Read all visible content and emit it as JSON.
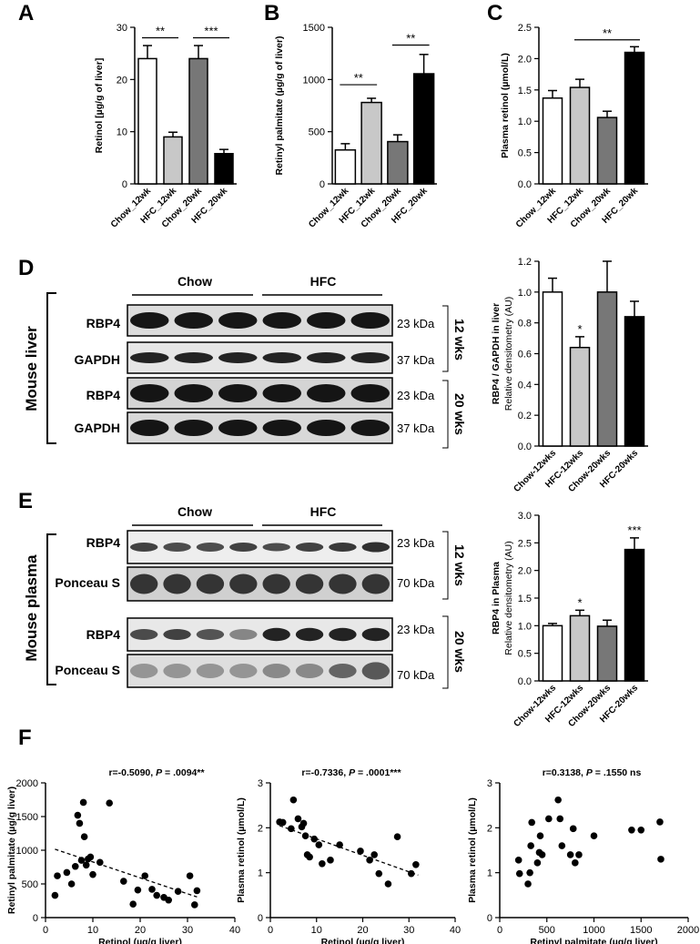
{
  "panel_letters": {
    "a": "A",
    "b": "B",
    "c": "C",
    "d": "D",
    "e": "E",
    "f": "F"
  },
  "chart_data": [
    {
      "id": "A",
      "type": "bar",
      "categories": [
        "Chow_12wk",
        "HFC_12wk",
        "Chow_20wk",
        "HFC_20wk"
      ],
      "values": [
        24,
        9,
        24,
        5.8
      ],
      "errors": [
        2.5,
        0.9,
        2.5,
        0.8
      ],
      "bar_colors": [
        "#ffffff",
        "#c8c8c8",
        "#777777",
        "#000000"
      ],
      "ylabel": "Retinol [µg/g of liver]",
      "ylim": [
        0,
        30
      ],
      "yticks": [
        0,
        10,
        20,
        30
      ],
      "significance": [
        {
          "from": 0,
          "to": 1,
          "label": "**",
          "y": 28
        },
        {
          "from": 2,
          "to": 3,
          "label": "***",
          "y": 28
        }
      ]
    },
    {
      "id": "B",
      "type": "bar",
      "categories": [
        "Chow_12wk",
        "HFC_12wk",
        "Chow_20wk",
        "HFC_20wk"
      ],
      "values": [
        325,
        780,
        405,
        1055
      ],
      "errors": [
        60,
        40,
        65,
        185
      ],
      "bar_colors": [
        "#ffffff",
        "#c8c8c8",
        "#777777",
        "#000000"
      ],
      "ylabel": "Retinyl palmitate (µg/g of liver)",
      "ylim": [
        0,
        1500
      ],
      "yticks": [
        0,
        500,
        1000,
        1500
      ],
      "significance": [
        {
          "from": 0,
          "to": 1,
          "label": "**",
          "y": 950
        },
        {
          "from": 2,
          "to": 3,
          "label": "**",
          "y": 1330
        }
      ]
    },
    {
      "id": "C",
      "type": "bar",
      "categories": [
        "Chow_12wk",
        "HFC_12wk",
        "Chow_20wk",
        "HFC_20wk"
      ],
      "values": [
        1.37,
        1.54,
        1.06,
        2.1
      ],
      "errors": [
        0.12,
        0.13,
        0.1,
        0.09
      ],
      "bar_colors": [
        "#ffffff",
        "#c8c8c8",
        "#777777",
        "#000000"
      ],
      "ylabel": "Plasma retinol (µmol/L)",
      "ylim": [
        0,
        2.5
      ],
      "yticks": [
        "0.0",
        "0.5",
        "1.0",
        "1.5",
        "2.0",
        "2.5"
      ],
      "significance": [
        {
          "from": 1,
          "to": 3,
          "label": "**",
          "y": 2.3
        }
      ]
    },
    {
      "id": "D",
      "type": "bar",
      "categories": [
        "Chow-12wks",
        "HFC-12wks",
        "Chow-20wks",
        "HFC-20wks"
      ],
      "values": [
        1.0,
        0.64,
        1.0,
        0.84
      ],
      "errors": [
        0.09,
        0.07,
        0.2,
        0.1
      ],
      "bar_colors": [
        "#ffffff",
        "#c8c8c8",
        "#777777",
        "#000000"
      ],
      "ylabel": "RBP4 / GAPDH in liver",
      "ylabel2": "Relative densitometry (AU)",
      "ylim": [
        0,
        1.2
      ],
      "yticks": [
        "0.0",
        "0.2",
        "0.4",
        "0.6",
        "0.8",
        "1.0",
        "1.2"
      ],
      "marks": [
        {
          "index": 1,
          "label": "*"
        }
      ]
    },
    {
      "id": "E",
      "type": "bar",
      "categories": [
        "Chow-12wks",
        "HFC-12wks",
        "Chow-20wks",
        "HFC-20wks"
      ],
      "values": [
        1.0,
        1.18,
        0.99,
        2.38
      ],
      "errors": [
        0.04,
        0.1,
        0.11,
        0.21
      ],
      "bar_colors": [
        "#ffffff",
        "#c8c8c8",
        "#777777",
        "#000000"
      ],
      "ylabel": "RBP4 in Plasma",
      "ylabel2": "Relative densitometry (AU)",
      "ylim": [
        0,
        3.0
      ],
      "yticks": [
        "0.0",
        "0.5",
        "1.0",
        "1.5",
        "2.0",
        "2.5",
        "3.0"
      ],
      "marks": [
        {
          "index": 1,
          "label": "*"
        },
        {
          "index": 3,
          "label": "***"
        }
      ]
    },
    {
      "id": "F1",
      "type": "scatter",
      "title_prefix": "r=-0.5090, ",
      "title_p": "P",
      "title_suffix": " = .0094**",
      "xlabel": "Retinol (µg/g liver)",
      "ylabel": "Retinyl palmitate (µg/g liver)",
      "xlim": [
        0,
        40
      ],
      "xticks": [
        0,
        10,
        20,
        30,
        40
      ],
      "ylim": [
        0,
        2000
      ],
      "yticks": [
        0,
        500,
        1000,
        1500,
        2000
      ],
      "trendline": true,
      "trend_x": [
        2,
        32
      ],
      "points": [
        [
          2,
          330
        ],
        [
          2.5,
          620
        ],
        [
          4.5,
          670
        ],
        [
          5.5,
          500
        ],
        [
          6.3,
          760
        ],
        [
          6.8,
          1520
        ],
        [
          7.2,
          1400
        ],
        [
          7.6,
          850
        ],
        [
          8,
          1710
        ],
        [
          8.2,
          1200
        ],
        [
          8.6,
          780
        ],
        [
          9,
          870
        ],
        [
          9.5,
          900
        ],
        [
          10,
          640
        ],
        [
          11.5,
          820
        ],
        [
          13.5,
          1700
        ],
        [
          16.5,
          540
        ],
        [
          18.5,
          200
        ],
        [
          19.5,
          410
        ],
        [
          21,
          620
        ],
        [
          22.5,
          420
        ],
        [
          23.5,
          330
        ],
        [
          25,
          300
        ],
        [
          26,
          260
        ],
        [
          28,
          390
        ],
        [
          30.5,
          620
        ],
        [
          31.5,
          190
        ],
        [
          32,
          400
        ]
      ]
    },
    {
      "id": "F2",
      "type": "scatter",
      "title_prefix": "r=-0.7336, ",
      "title_p": "P",
      "title_suffix": " = .0001***",
      "xlabel": "Retinol (µg/g liver)",
      "ylabel": "Plasma retinol (µmol/L)",
      "xlim": [
        0,
        40
      ],
      "xticks": [
        0,
        10,
        20,
        30,
        40
      ],
      "ylim": [
        0,
        3
      ],
      "yticks": [
        0,
        1,
        2,
        3
      ],
      "trendline": true,
      "trend_x": [
        2,
        32
      ],
      "points": [
        [
          2,
          2.13
        ],
        [
          2.7,
          2.12
        ],
        [
          4.5,
          1.98
        ],
        [
          5,
          2.62
        ],
        [
          6,
          2.2
        ],
        [
          6.8,
          2.02
        ],
        [
          7.2,
          2.1
        ],
        [
          7.6,
          1.82
        ],
        [
          8,
          1.4
        ],
        [
          8.5,
          1.35
        ],
        [
          9.5,
          1.75
        ],
        [
          10.5,
          1.62
        ],
        [
          11.2,
          1.2
        ],
        [
          13,
          1.28
        ],
        [
          15,
          1.62
        ],
        [
          19.5,
          1.48
        ],
        [
          21.5,
          1.28
        ],
        [
          22.5,
          1.4
        ],
        [
          23.5,
          0.98
        ],
        [
          25.5,
          0.75
        ],
        [
          27.5,
          1.8
        ],
        [
          30.5,
          0.98
        ],
        [
          31.5,
          1.18
        ]
      ]
    },
    {
      "id": "F3",
      "type": "scatter",
      "title_prefix": "r=0.3138, ",
      "title_p": "P",
      "title_suffix": " = .1550 ns",
      "xlabel": "Retinyl palmitate (µg/g liver)",
      "ylabel": "Plasma retinol (µmol/L)",
      "xlim": [
        0,
        2000
      ],
      "xticks": [
        0,
        500,
        1000,
        1500,
        2000
      ],
      "ylim": [
        0,
        3
      ],
      "yticks": [
        0,
        1,
        2,
        3
      ],
      "trendline": false,
      "points": [
        [
          200,
          1.28
        ],
        [
          210,
          0.98
        ],
        [
          300,
          0.75
        ],
        [
          320,
          1.0
        ],
        [
          330,
          1.6
        ],
        [
          340,
          2.12
        ],
        [
          400,
          1.22
        ],
        [
          420,
          1.45
        ],
        [
          430,
          1.82
        ],
        [
          450,
          1.4
        ],
        [
          520,
          2.2
        ],
        [
          620,
          2.62
        ],
        [
          640,
          2.2
        ],
        [
          660,
          1.6
        ],
        [
          750,
          1.4
        ],
        [
          780,
          1.98
        ],
        [
          800,
          1.22
        ],
        [
          840,
          1.4
        ],
        [
          1000,
          1.82
        ],
        [
          1400,
          1.95
        ],
        [
          1500,
          1.95
        ],
        [
          1700,
          2.13
        ],
        [
          1710,
          1.3
        ]
      ]
    }
  ],
  "blot_D": {
    "side_label": "Mouse liver",
    "group_chow": "Chow",
    "group_hfc": "HFC",
    "rows": [
      {
        "protein": "RBP4",
        "size": "23 kDa",
        "intensity": 0.9
      },
      {
        "protein": "GAPDH",
        "size": "37 kDa",
        "intensity": 0.85
      },
      {
        "protein": "RBP4",
        "size": "23 kDa",
        "intensity": 0.9
      },
      {
        "protein": "GAPDH",
        "size": "37 kDa",
        "intensity": 0.9
      }
    ],
    "time_12": "12 wks",
    "time_20": "20 wks"
  },
  "blot_E": {
    "side_label": "Mouse plasma",
    "group_chow": "Chow",
    "group_hfc": "HFC",
    "rows": [
      {
        "protein": "RBP4",
        "size": "23 kDa",
        "intensity": 0.8
      },
      {
        "protein": "Ponceau S",
        "size": "70 kDa",
        "intensity": 0.75
      },
      {
        "protein": "RBP4",
        "size": "23 kDa",
        "intensity": 0.85
      },
      {
        "protein": "Ponceau S",
        "size": "70 kDa",
        "intensity": 0.55
      }
    ],
    "time_12": "12 wks",
    "time_20": "20 wks"
  }
}
